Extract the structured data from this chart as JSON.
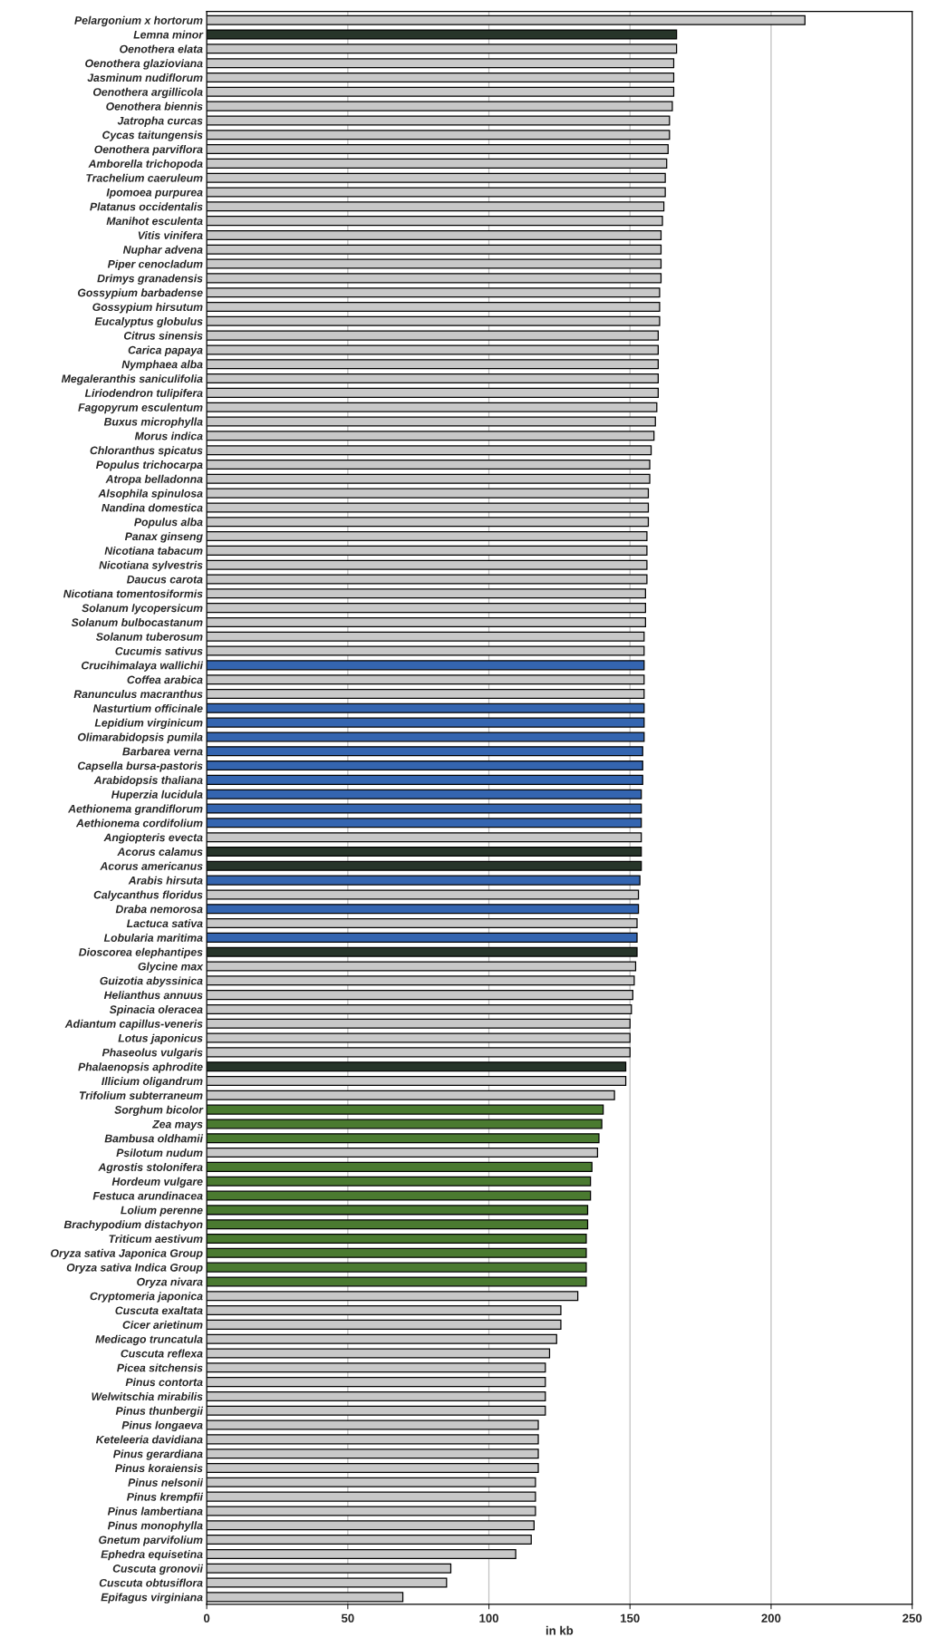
{
  "chart_data": {
    "type": "bar",
    "orientation": "horizontal",
    "xlabel": "in kb",
    "categories": [
      "Pelargonium x hortorum",
      "Lemna minor",
      "Oenothera elata",
      "Oenothera glazioviana",
      "Jasminum nudiflorum",
      "Oenothera argillicola",
      "Oenothera biennis",
      "Jatropha curcas",
      "Cycas taitungensis",
      "Oenothera parviflora",
      "Amborella trichopoda",
      "Trachelium caeruleum",
      "Ipomoea purpurea",
      "Platanus occidentalis",
      "Manihot esculenta",
      "Vitis vinifera",
      "Nuphar advena",
      "Piper cenocladum",
      "Drimys granadensis",
      "Gossypium barbadense",
      "Gossypium hirsutum",
      "Eucalyptus globulus",
      "Citrus sinensis",
      "Carica papaya",
      "Nymphaea alba",
      "Megaleranthis saniculifolia",
      "Liriodendron tulipifera",
      "Fagopyrum esculentum",
      "Buxus microphylla",
      "Morus indica",
      "Chloranthus spicatus",
      "Populus trichocarpa",
      "Atropa belladonna",
      "Alsophila spinulosa",
      "Nandina domestica",
      "Populus alba",
      "Panax ginseng",
      "Nicotiana tabacum",
      "Nicotiana sylvestris",
      "Daucus carota",
      "Nicotiana tomentosiformis",
      "Solanum lycopersicum",
      "Solanum bulbocastanum",
      "Solanum tuberosum",
      "Cucumis sativus",
      "Crucihimalaya wallichii",
      "Coffea arabica",
      "Ranunculus macranthus",
      "Nasturtium officinale",
      "Lepidium virginicum",
      "Olimarabidopsis pumila",
      "Barbarea verna",
      "Capsella bursa-pastoris",
      "Arabidopsis thaliana",
      "Huperzia lucidula",
      "Aethionema grandiflorum",
      "Aethionema cordifolium",
      "Angiopteris evecta",
      "Acorus calamus",
      "Acorus americanus",
      "Arabis hirsuta",
      "Calycanthus floridus",
      "Draba nemorosa",
      "Lactuca sativa",
      "Lobularia maritima",
      "Dioscorea elephantipes",
      "Glycine max",
      "Guizotia abyssinica",
      "Helianthus annuus",
      "Spinacia oleracea",
      "Adiantum capillus-veneris",
      "Lotus japonicus",
      "Phaseolus vulgaris",
      "Phalaenopsis aphrodite",
      "Illicium oligandrum",
      "Trifolium subterraneum",
      "Sorghum bicolor",
      "Zea mays",
      "Bambusa oldhamii",
      "Psilotum nudum",
      "Agrostis stolonifera",
      "Hordeum vulgare",
      "Festuca arundinacea",
      "Lolium perenne",
      "Brachypodium distachyon",
      "Triticum aestivum",
      "Oryza sativa Japonica Group",
      "Oryza sativa Indica Group",
      "Oryza nivara",
      "Cryptomeria japonica",
      "Cuscuta exaltata",
      "Cicer arietinum",
      "Medicago truncatula",
      "Cuscuta reflexa",
      "Picea sitchensis",
      "Pinus contorta",
      "Welwitschia mirabilis",
      "Pinus thunbergii",
      "Pinus longaeva",
      "Keteleeria davidiana",
      "Pinus gerardiana",
      "Pinus koraiensis",
      "Pinus nelsonii",
      "Pinus krempfii",
      "Pinus lambertiana",
      "Pinus monophylla",
      "Gnetum parvifolium",
      "Ephedra equisetina",
      "Cuscuta gronovii",
      "Cuscuta obtusiflora",
      "Epifagus virginiana"
    ],
    "values": [
      212,
      166.5,
      166.5,
      165.5,
      165.5,
      165.5,
      165,
      164,
      164,
      163.5,
      163,
      162.5,
      162.5,
      162,
      161.5,
      161,
      161,
      161,
      161,
      160.5,
      160.5,
      160.5,
      160,
      160,
      160,
      160,
      160,
      159.5,
      159,
      158.5,
      157.5,
      157,
      157,
      156.5,
      156.5,
      156.5,
      156,
      156,
      156,
      156,
      155.5,
      155.5,
      155.5,
      155,
      155,
      155,
      155,
      155,
      155,
      155,
      155,
      154.5,
      154.5,
      154.5,
      154,
      154,
      154,
      154,
      154,
      154,
      153.5,
      153,
      153,
      152.5,
      152.5,
      152.5,
      152,
      151.5,
      151,
      150.5,
      150,
      150,
      150,
      148.5,
      148.5,
      144.5,
      140.5,
      140,
      139,
      138.5,
      136.5,
      136,
      136,
      135,
      135,
      134.5,
      134.5,
      134.5,
      134.5,
      131.5,
      125.5,
      125.5,
      124,
      121.5,
      120,
      120,
      120,
      120,
      117.5,
      117.5,
      117.5,
      117.5,
      116.5,
      116.5,
      116.5,
      116,
      115,
      109.5,
      86.5,
      85,
      69.5
    ],
    "colors": [
      "#c8c8c8",
      "#27352a",
      "#c8c8c8",
      "#c8c8c8",
      "#c8c8c8",
      "#c8c8c8",
      "#c8c8c8",
      "#c8c8c8",
      "#c8c8c8",
      "#c8c8c8",
      "#c8c8c8",
      "#c8c8c8",
      "#c8c8c8",
      "#c8c8c8",
      "#c8c8c8",
      "#c8c8c8",
      "#c8c8c8",
      "#c8c8c8",
      "#c8c8c8",
      "#c8c8c8",
      "#c8c8c8",
      "#c8c8c8",
      "#c8c8c8",
      "#c8c8c8",
      "#c8c8c8",
      "#c8c8c8",
      "#c8c8c8",
      "#c8c8c8",
      "#c8c8c8",
      "#c8c8c8",
      "#c8c8c8",
      "#c8c8c8",
      "#c8c8c8",
      "#c8c8c8",
      "#c8c8c8",
      "#c8c8c8",
      "#c8c8c8",
      "#c8c8c8",
      "#c8c8c8",
      "#c8c8c8",
      "#c8c8c8",
      "#c8c8c8",
      "#c8c8c8",
      "#c8c8c8",
      "#c8c8c8",
      "#3465b0",
      "#c8c8c8",
      "#c8c8c8",
      "#3465b0",
      "#3465b0",
      "#3465b0",
      "#3465b0",
      "#3465b0",
      "#3465b0",
      "#3465b0",
      "#3465b0",
      "#3465b0",
      "#c8c8c8",
      "#27352a",
      "#27352a",
      "#3465b0",
      "#c8c8c8",
      "#3465b0",
      "#c8c8c8",
      "#3465b0",
      "#27352a",
      "#c8c8c8",
      "#c8c8c8",
      "#c8c8c8",
      "#c8c8c8",
      "#c8c8c8",
      "#c8c8c8",
      "#c8c8c8",
      "#27352a",
      "#c8c8c8",
      "#c8c8c8",
      "#4a7a30",
      "#4a7a30",
      "#4a7a30",
      "#c8c8c8",
      "#4a7a30",
      "#4a7a30",
      "#4a7a30",
      "#4a7a30",
      "#4a7a30",
      "#4a7a30",
      "#4a7a30",
      "#4a7a30",
      "#4a7a30",
      "#c8c8c8",
      "#c8c8c8",
      "#c8c8c8",
      "#c8c8c8",
      "#c8c8c8",
      "#c8c8c8",
      "#c8c8c8",
      "#c8c8c8",
      "#c8c8c8",
      "#c8c8c8",
      "#c8c8c8",
      "#c8c8c8",
      "#c8c8c8",
      "#c8c8c8",
      "#c8c8c8",
      "#c8c8c8",
      "#c8c8c8",
      "#c8c8c8",
      "#c8c8c8",
      "#c8c8c8",
      "#c8c8c8",
      "#c8c8c8"
    ],
    "xlim": [
      0,
      250
    ],
    "xticks": [
      0,
      50,
      100,
      150,
      200,
      250
    ],
    "grid": "x"
  }
}
